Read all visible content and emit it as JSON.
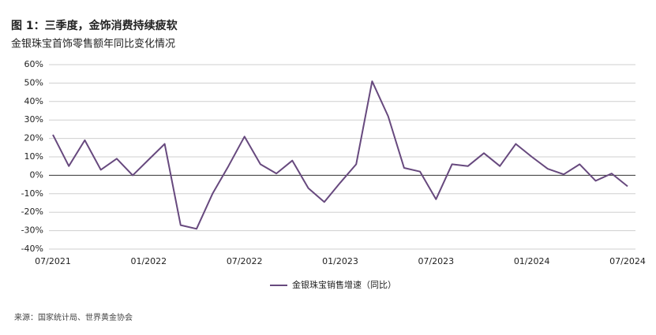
{
  "chart_data": {
    "type": "line",
    "title": "图 1：三季度，金饰消费持续疲软",
    "subtitle": "金银珠宝首饰零售额年同比变化情况",
    "source": "来源：国家统计局、世界黄金协会",
    "categories": [
      "07/2021",
      null,
      null,
      null,
      null,
      null,
      "01/2022",
      null,
      null,
      null,
      null,
      null,
      "07/2022",
      null,
      null,
      null,
      null,
      null,
      "01/2023",
      null,
      null,
      null,
      null,
      null,
      "07/2023",
      null,
      null,
      null,
      null,
      null,
      "01/2024",
      null,
      null,
      null,
      null,
      null,
      "07/2024"
    ],
    "series": [
      {
        "name": "金银珠宝销售增速（同比）",
        "color": "#67497e",
        "values": [
          22,
          5,
          19,
          3,
          9,
          0,
          8.5,
          17,
          -27,
          -29,
          -10,
          5,
          21,
          6,
          1,
          8,
          -7,
          -14.5,
          -4,
          6,
          51,
          32,
          4,
          2,
          -13,
          6,
          5,
          12,
          5,
          17,
          10,
          3.5,
          0.5,
          6,
          -3,
          1,
          -6
        ]
      }
    ],
    "ylim": [
      -40,
      60
    ],
    "yticks": [
      {
        "value": -40,
        "label": "-40%"
      },
      {
        "value": -30,
        "label": "-30%"
      },
      {
        "value": -20,
        "label": "-20%"
      },
      {
        "value": -10,
        "label": "-10%"
      },
      {
        "value": 0,
        "label": "0%"
      },
      {
        "value": 10,
        "label": "10%"
      },
      {
        "value": 20,
        "label": "20%"
      },
      {
        "value": 30,
        "label": "30%"
      },
      {
        "value": 40,
        "label": "40%"
      },
      {
        "value": 50,
        "label": "50%"
      },
      {
        "value": 60,
        "label": "60%"
      }
    ],
    "grid": true
  }
}
